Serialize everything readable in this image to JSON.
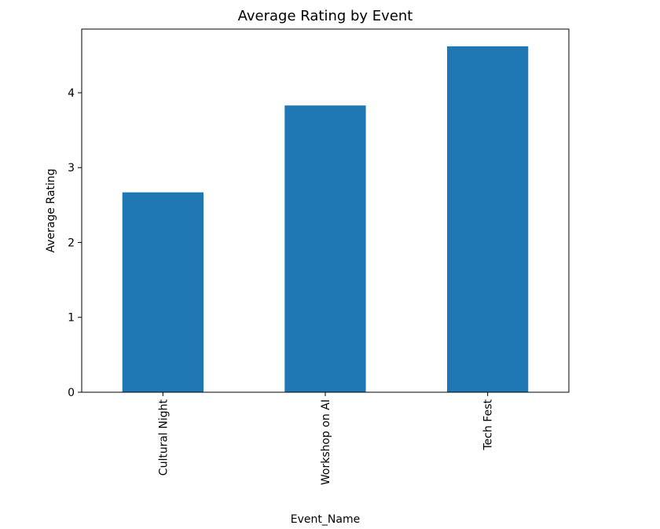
{
  "chart_data": {
    "type": "bar",
    "title": "Average Rating by Event",
    "xlabel": "Event_Name",
    "ylabel": "Average Rating",
    "categories": [
      "Cultural Night",
      "Workshop on AI",
      "Tech Fest"
    ],
    "values": [
      2.67,
      3.83,
      4.62
    ],
    "ylim": [
      0,
      4.85
    ],
    "yticks": [
      0,
      1,
      2,
      3,
      4
    ],
    "ytick_labels": [
      "0",
      "1",
      "2",
      "3",
      "4"
    ],
    "xtick_rotation": "vertical",
    "grid": false,
    "legend": "none",
    "bar_color": "#1f77b4"
  }
}
